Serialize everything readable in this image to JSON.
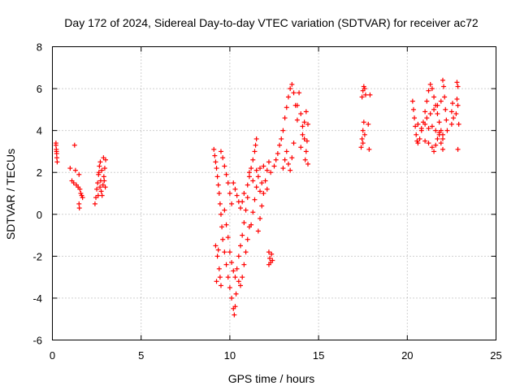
{
  "chart_data": {
    "type": "scatter",
    "title": "Day 172 of 2024, Sidereal Day-to-day VTEC variation (SDTVAR) for receiver ac72",
    "xlabel": "GPS time / hours",
    "ylabel": "SDTVAR / TECUs",
    "xlim": [
      0,
      25
    ],
    "ylim": [
      -6,
      8
    ],
    "xticks": [
      "0",
      "5",
      "10",
      "15",
      "20",
      "25"
    ],
    "xtick_values": [
      0,
      5,
      10,
      15,
      20,
      25
    ],
    "yticks": [
      "-6",
      "-4",
      "-2",
      "0",
      "2",
      "4",
      "6",
      "8"
    ],
    "ytick_values": [
      -6,
      -4,
      -2,
      0,
      2,
      4,
      6,
      8
    ],
    "grid": true,
    "marker": "plus",
    "color": "#ff0000",
    "series": [
      {
        "values": [
          [
            0.2,
            3.4
          ],
          [
            0.22,
            3.1
          ],
          [
            0.24,
            2.9
          ],
          [
            0.25,
            2.7
          ],
          [
            0.27,
            2.5
          ],
          [
            0.2,
            3.3
          ],
          [
            0.23,
            3.0
          ],
          [
            1.0,
            2.2
          ],
          [
            1.1,
            1.6
          ],
          [
            1.2,
            1.5
          ],
          [
            1.25,
            3.3
          ],
          [
            1.3,
            2.1
          ],
          [
            1.35,
            1.4
          ],
          [
            1.45,
            1.3
          ],
          [
            1.5,
            0.5
          ],
          [
            1.52,
            0.3
          ],
          [
            1.55,
            1.2
          ],
          [
            1.6,
            1.0
          ],
          [
            1.65,
            0.9
          ],
          [
            1.7,
            0.8
          ],
          [
            1.5,
            1.9
          ],
          [
            2.4,
            0.5
          ],
          [
            2.45,
            0.8
          ],
          [
            2.5,
            1.2
          ],
          [
            2.55,
            1.5
          ],
          [
            2.6,
            1.9
          ],
          [
            2.65,
            2.3
          ],
          [
            2.7,
            2.5
          ],
          [
            2.75,
            1.1
          ],
          [
            2.8,
            0.9
          ],
          [
            2.85,
            1.4
          ],
          [
            2.9,
            1.8
          ],
          [
            2.95,
            2.2
          ],
          [
            3.0,
            2.6
          ],
          [
            2.72,
            1.6
          ],
          [
            2.58,
            0.9
          ],
          [
            2.68,
            1.3
          ],
          [
            2.78,
            2.1
          ],
          [
            2.88,
            2.7
          ],
          [
            2.98,
            1.3
          ],
          [
            2.62,
            2.0
          ],
          [
            2.92,
            1.6
          ],
          [
            9.1,
            3.1
          ],
          [
            9.15,
            2.8
          ],
          [
            9.2,
            2.5
          ],
          [
            9.25,
            2.2
          ],
          [
            9.3,
            1.8
          ],
          [
            9.35,
            1.4
          ],
          [
            9.4,
            1.0
          ],
          [
            9.45,
            0.5
          ],
          [
            9.5,
            0.0
          ],
          [
            9.55,
            -0.6
          ],
          [
            9.6,
            -1.2
          ],
          [
            9.7,
            -1.8
          ],
          [
            9.8,
            -2.4
          ],
          [
            9.9,
            -3.0
          ],
          [
            10.0,
            -3.5
          ],
          [
            10.1,
            -4.0
          ],
          [
            10.2,
            -4.5
          ],
          [
            10.25,
            -4.8
          ],
          [
            10.3,
            -4.4
          ],
          [
            10.35,
            -3.8
          ],
          [
            9.2,
            -1.5
          ],
          [
            9.3,
            -2.0
          ],
          [
            9.4,
            -2.6
          ],
          [
            9.45,
            -3.0
          ],
          [
            9.5,
            -3.4
          ],
          [
            9.35,
            -1.7
          ],
          [
            9.25,
            -3.2
          ],
          [
            9.5,
            3.0
          ],
          [
            9.6,
            2.7
          ],
          [
            9.7,
            2.3
          ],
          [
            9.8,
            1.9
          ],
          [
            9.9,
            1.5
          ],
          [
            10.0,
            1.0
          ],
          [
            10.1,
            0.5
          ],
          [
            9.7,
            0.2
          ],
          [
            9.8,
            -0.5
          ],
          [
            9.9,
            -1.1
          ],
          [
            10.0,
            -1.8
          ],
          [
            10.1,
            -2.3
          ],
          [
            10.2,
            -2.7
          ],
          [
            10.3,
            -3.0
          ],
          [
            10.4,
            -2.6
          ],
          [
            10.5,
            -2.0
          ],
          [
            10.6,
            -1.5
          ],
          [
            10.7,
            -1.0
          ],
          [
            10.8,
            -0.4
          ],
          [
            10.9,
            0.2
          ],
          [
            11.0,
            0.8
          ],
          [
            10.2,
            1.5
          ],
          [
            10.3,
            1.2
          ],
          [
            10.4,
            0.9
          ],
          [
            10.5,
            0.6
          ],
          [
            10.6,
            0.3
          ],
          [
            10.7,
            0.6
          ],
          [
            10.8,
            1.0
          ],
          [
            10.5,
            -3.2
          ],
          [
            10.6,
            -3.4
          ],
          [
            10.7,
            -3.0
          ],
          [
            10.8,
            -2.4
          ],
          [
            10.9,
            -1.8
          ],
          [
            11.0,
            -1.2
          ],
          [
            11.1,
            -0.6
          ],
          [
            11.0,
            1.4
          ],
          [
            11.1,
            1.8
          ],
          [
            11.2,
            2.2
          ],
          [
            11.3,
            2.6
          ],
          [
            11.4,
            3.0
          ],
          [
            11.5,
            3.6
          ],
          [
            11.45,
            3.3
          ],
          [
            11.2,
            -0.5
          ],
          [
            11.3,
            0.1
          ],
          [
            11.4,
            0.7
          ],
          [
            11.5,
            1.3
          ],
          [
            11.6,
            1.8
          ],
          [
            11.7,
            2.2
          ],
          [
            11.8,
            1.5
          ],
          [
            11.6,
            -0.8
          ],
          [
            11.7,
            -0.2
          ],
          [
            11.8,
            0.4
          ],
          [
            11.9,
            1.0
          ],
          [
            12.0,
            1.6
          ],
          [
            12.1,
            2.1
          ],
          [
            12.2,
            2.5
          ],
          [
            11.1,
            2.0
          ],
          [
            11.3,
            1.6
          ],
          [
            11.5,
            2.1
          ],
          [
            11.7,
            1.1
          ],
          [
            11.9,
            2.3
          ],
          [
            12.1,
            1.2
          ],
          [
            12.3,
            2.0
          ],
          [
            12.5,
            2.3
          ],
          [
            12.6,
            2.6
          ],
          [
            12.7,
            2.9
          ],
          [
            12.8,
            3.3
          ],
          [
            12.9,
            3.6
          ],
          [
            13.0,
            4.0
          ],
          [
            13.1,
            4.6
          ],
          [
            13.2,
            5.1
          ],
          [
            13.3,
            5.6
          ],
          [
            13.4,
            6.0
          ],
          [
            13.5,
            6.2
          ],
          [
            13.6,
            5.8
          ],
          [
            13.7,
            5.2
          ],
          [
            13.8,
            4.5
          ],
          [
            12.2,
            -1.8
          ],
          [
            12.25,
            -2.1
          ],
          [
            12.3,
            -2.3
          ],
          [
            12.35,
            -1.9
          ],
          [
            12.4,
            -2.2
          ],
          [
            12.2,
            -2.4
          ],
          [
            13.0,
            2.2
          ],
          [
            13.1,
            2.6
          ],
          [
            13.2,
            3.0
          ],
          [
            13.3,
            2.4
          ],
          [
            13.4,
            2.1
          ],
          [
            13.5,
            2.7
          ],
          [
            13.6,
            3.4
          ],
          [
            13.8,
            5.2
          ],
          [
            13.9,
            5.8
          ],
          [
            14.0,
            4.8
          ],
          [
            14.1,
            4.2
          ],
          [
            14.2,
            3.6
          ],
          [
            14.3,
            3.0
          ],
          [
            14.4,
            2.4
          ],
          [
            14.0,
            3.2
          ],
          [
            14.1,
            3.8
          ],
          [
            14.2,
            4.4
          ],
          [
            14.3,
            4.9
          ],
          [
            14.4,
            4.3
          ],
          [
            14.35,
            3.5
          ],
          [
            14.25,
            2.6
          ],
          [
            17.4,
            3.2
          ],
          [
            17.45,
            3.6
          ],
          [
            17.5,
            4.0
          ],
          [
            17.55,
            4.4
          ],
          [
            17.45,
            5.6
          ],
          [
            17.5,
            5.9
          ],
          [
            17.55,
            6.1
          ],
          [
            17.6,
            6.0
          ],
          [
            17.65,
            5.7
          ],
          [
            17.5,
            3.4
          ],
          [
            17.6,
            3.8
          ],
          [
            17.8,
            4.3
          ],
          [
            17.85,
            3.1
          ],
          [
            17.9,
            5.7
          ],
          [
            20.3,
            5.4
          ],
          [
            20.35,
            5.0
          ],
          [
            20.4,
            4.6
          ],
          [
            20.45,
            4.2
          ],
          [
            20.5,
            3.8
          ],
          [
            20.55,
            3.5
          ],
          [
            20.6,
            3.4
          ],
          [
            20.7,
            3.6
          ],
          [
            20.8,
            4.0
          ],
          [
            20.9,
            4.4
          ],
          [
            21.0,
            4.9
          ],
          [
            21.1,
            5.4
          ],
          [
            21.2,
            5.9
          ],
          [
            21.3,
            6.2
          ],
          [
            21.4,
            6.0
          ],
          [
            21.5,
            5.6
          ],
          [
            21.6,
            5.2
          ],
          [
            21.7,
            4.8
          ],
          [
            21.8,
            4.4
          ],
          [
            21.9,
            4.0
          ],
          [
            22.0,
            3.6
          ],
          [
            21.4,
            3.2
          ],
          [
            21.5,
            3.0
          ],
          [
            21.6,
            3.3
          ],
          [
            21.7,
            3.6
          ],
          [
            21.8,
            3.9
          ],
          [
            21.9,
            3.4
          ],
          [
            22.0,
            3.1
          ],
          [
            20.6,
            4.3
          ],
          [
            20.8,
            4.1
          ],
          [
            21.0,
            4.3
          ],
          [
            21.2,
            4.1
          ],
          [
            21.4,
            4.2
          ],
          [
            21.6,
            4.0
          ],
          [
            21.8,
            3.8
          ],
          [
            21.0,
            3.5
          ],
          [
            21.2,
            3.4
          ],
          [
            21.1,
            4.6
          ],
          [
            21.3,
            4.8
          ],
          [
            21.5,
            5.0
          ],
          [
            21.7,
            5.2
          ],
          [
            21.9,
            5.4
          ],
          [
            22.0,
            6.4
          ],
          [
            22.05,
            6.1
          ],
          [
            22.1,
            5.6
          ],
          [
            22.15,
            5.0
          ],
          [
            22.2,
            4.5
          ],
          [
            22.25,
            4.0
          ],
          [
            22.0,
            3.8
          ],
          [
            22.5,
            4.9
          ],
          [
            22.55,
            5.3
          ],
          [
            22.6,
            4.6
          ],
          [
            22.5,
            4.3
          ],
          [
            22.8,
            6.3
          ],
          [
            22.85,
            6.1
          ],
          [
            22.8,
            5.5
          ],
          [
            22.85,
            5.2
          ],
          [
            22.9,
            4.3
          ],
          [
            22.85,
            3.1
          ],
          [
            22.75,
            4.8
          ]
        ]
      }
    ]
  }
}
